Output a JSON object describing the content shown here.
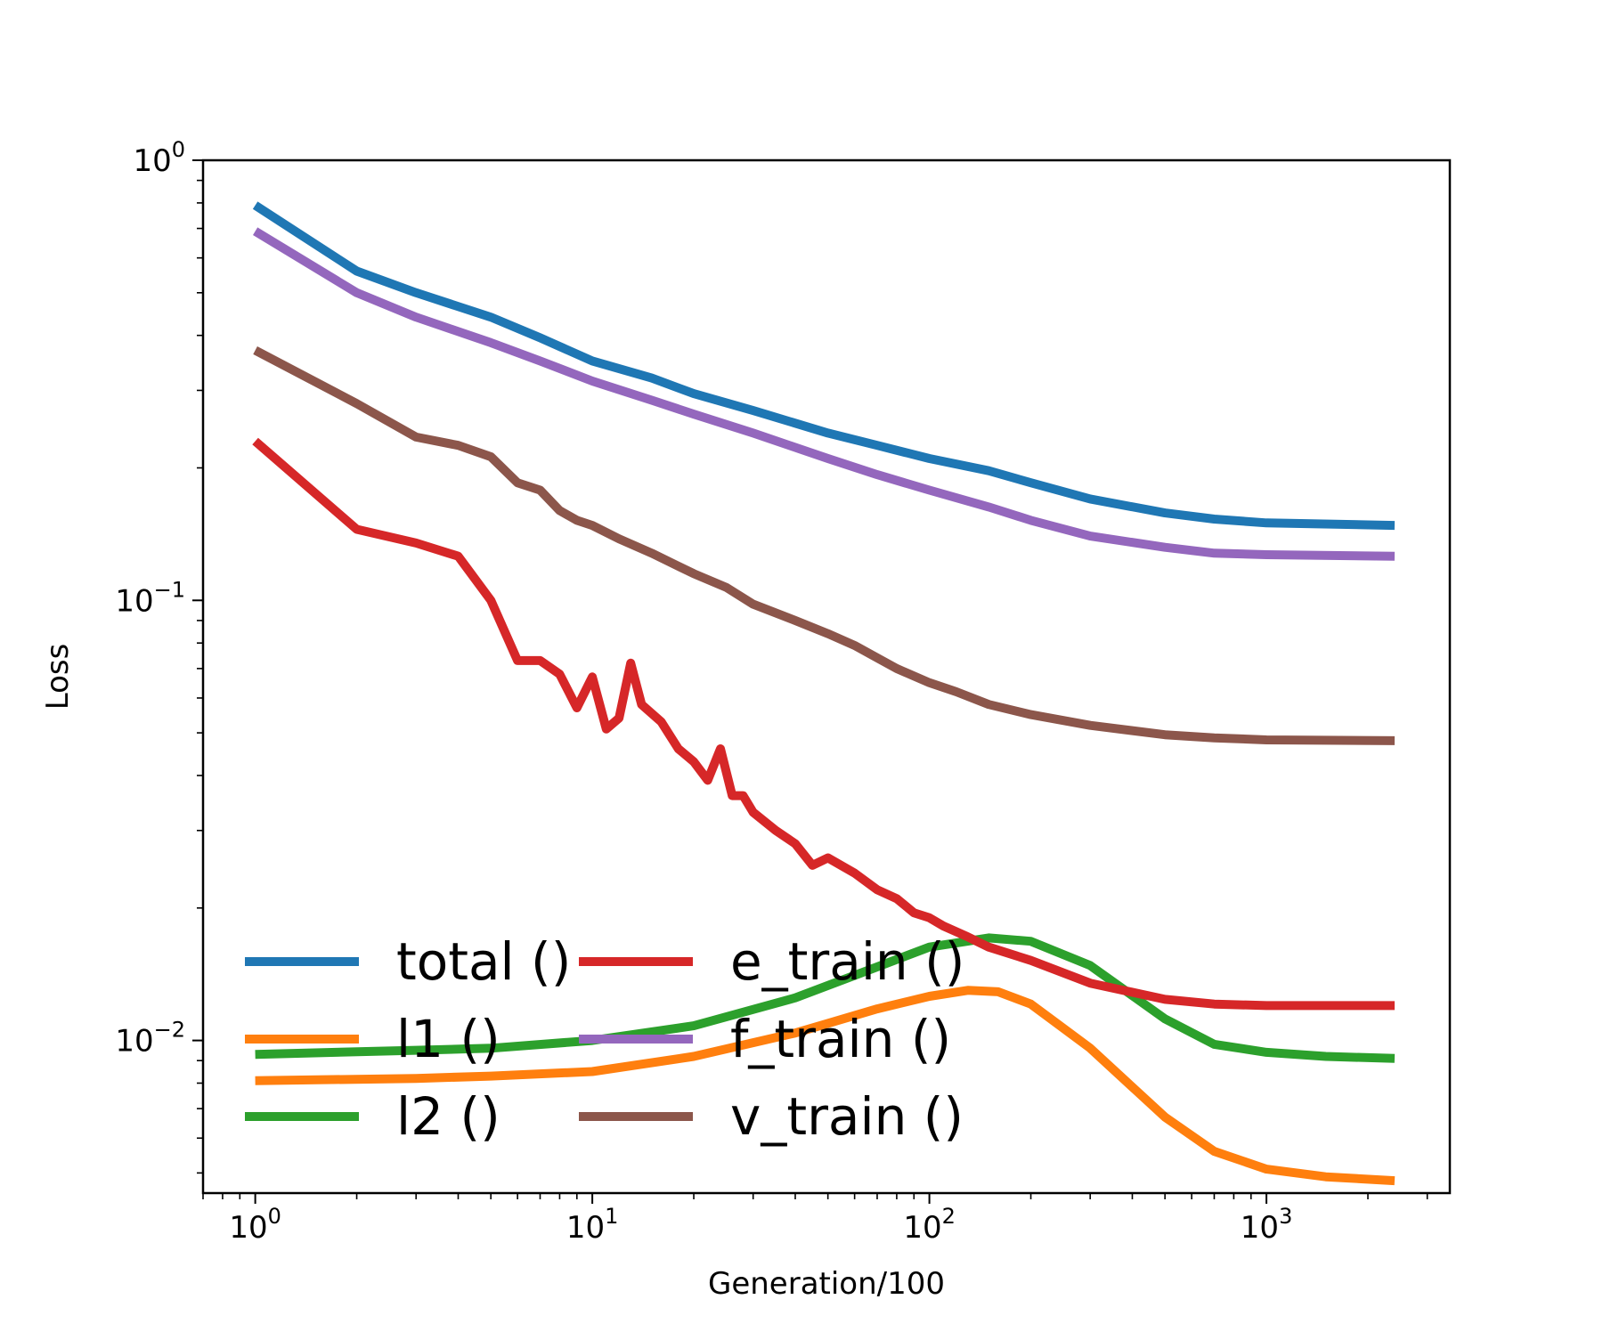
{
  "chart_data": {
    "type": "line",
    "xlabel": "Generation/100",
    "ylabel": "Loss",
    "xscale": "log",
    "yscale": "log",
    "xlim": [
      0.7,
      3500
    ],
    "ylim": [
      0.0045,
      1.0
    ],
    "x_tick_labels": [
      {
        "value": 1,
        "base": "10",
        "exp": "0"
      },
      {
        "value": 10,
        "base": "10",
        "exp": "1"
      },
      {
        "value": 100,
        "base": "10",
        "exp": "2"
      },
      {
        "value": 1000,
        "base": "10",
        "exp": "3"
      }
    ],
    "y_tick_labels": [
      {
        "value": 1,
        "base": "10",
        "exp": "0"
      },
      {
        "value": 0.1,
        "base": "10",
        "exp": "−1"
      },
      {
        "value": 0.01,
        "base": "10",
        "exp": "−2"
      }
    ],
    "grid": false,
    "legend": {
      "placement": "lower-left",
      "columns": 2
    },
    "series": [
      {
        "name": "total ()",
        "color": "#1f77b4",
        "x": [
          1,
          2,
          3,
          5,
          7,
          10,
          15,
          20,
          30,
          50,
          70,
          100,
          150,
          200,
          300,
          500,
          700,
          1000,
          2400
        ],
        "y": [
          0.79,
          0.56,
          0.5,
          0.44,
          0.395,
          0.35,
          0.32,
          0.295,
          0.27,
          0.24,
          0.225,
          0.21,
          0.197,
          0.185,
          0.17,
          0.158,
          0.153,
          0.15,
          0.148
        ]
      },
      {
        "name": "l1 ()",
        "color": "#ff7f0e",
        "x": [
          1,
          3,
          5,
          10,
          20,
          40,
          70,
          100,
          130,
          160,
          200,
          300,
          500,
          700,
          1000,
          1500,
          2400
        ],
        "y": [
          0.0081,
          0.0082,
          0.0083,
          0.0085,
          0.0092,
          0.0104,
          0.0118,
          0.0126,
          0.013,
          0.0129,
          0.0121,
          0.0096,
          0.0067,
          0.0056,
          0.0051,
          0.0049,
          0.0048
        ]
      },
      {
        "name": "l2 ()",
        "color": "#2ca02c",
        "x": [
          1,
          3,
          5,
          10,
          20,
          40,
          70,
          100,
          150,
          200,
          300,
          500,
          700,
          1000,
          1500,
          2400
        ],
        "y": [
          0.0093,
          0.0095,
          0.0096,
          0.01,
          0.0108,
          0.0125,
          0.0147,
          0.0163,
          0.0171,
          0.0168,
          0.0148,
          0.0112,
          0.0098,
          0.0094,
          0.0092,
          0.0091
        ]
      },
      {
        "name": "e_train ()",
        "color": "#d62728",
        "x": [
          1,
          2,
          3,
          4,
          5,
          6,
          7,
          8,
          9,
          10,
          11,
          12,
          13,
          14,
          16,
          18,
          20,
          22,
          24,
          26,
          28,
          30,
          35,
          40,
          45,
          50,
          60,
          70,
          80,
          90,
          100,
          110,
          130,
          150,
          200,
          300,
          500,
          700,
          1000,
          2400
        ],
        "y": [
          0.23,
          0.145,
          0.135,
          0.126,
          0.1,
          0.073,
          0.073,
          0.068,
          0.057,
          0.067,
          0.051,
          0.054,
          0.072,
          0.058,
          0.053,
          0.046,
          0.043,
          0.039,
          0.046,
          0.036,
          0.036,
          0.033,
          0.03,
          0.028,
          0.025,
          0.026,
          0.024,
          0.022,
          0.021,
          0.0195,
          0.019,
          0.0182,
          0.0172,
          0.0163,
          0.0152,
          0.0135,
          0.0124,
          0.0121,
          0.012,
          0.012
        ]
      },
      {
        "name": "f_train ()",
        "color": "#9467bd",
        "x": [
          1,
          2,
          3,
          5,
          7,
          10,
          15,
          20,
          30,
          50,
          70,
          100,
          150,
          200,
          300,
          500,
          700,
          1000,
          2400
        ],
        "y": [
          0.69,
          0.5,
          0.44,
          0.385,
          0.35,
          0.315,
          0.285,
          0.265,
          0.24,
          0.21,
          0.193,
          0.178,
          0.163,
          0.152,
          0.14,
          0.132,
          0.128,
          0.127,
          0.126
        ]
      },
      {
        "name": "v_train ()",
        "color": "#8c564b",
        "x": [
          1,
          2,
          3,
          4,
          5,
          6,
          7,
          8,
          9,
          10,
          12,
          15,
          20,
          25,
          30,
          40,
          50,
          60,
          70,
          80,
          100,
          120,
          150,
          200,
          300,
          500,
          700,
          1000,
          2400
        ],
        "y": [
          0.37,
          0.28,
          0.235,
          0.225,
          0.212,
          0.185,
          0.178,
          0.16,
          0.152,
          0.148,
          0.138,
          0.128,
          0.115,
          0.107,
          0.098,
          0.09,
          0.084,
          0.079,
          0.074,
          0.07,
          0.065,
          0.062,
          0.058,
          0.055,
          0.052,
          0.0495,
          0.0487,
          0.0482,
          0.048
        ]
      }
    ]
  }
}
